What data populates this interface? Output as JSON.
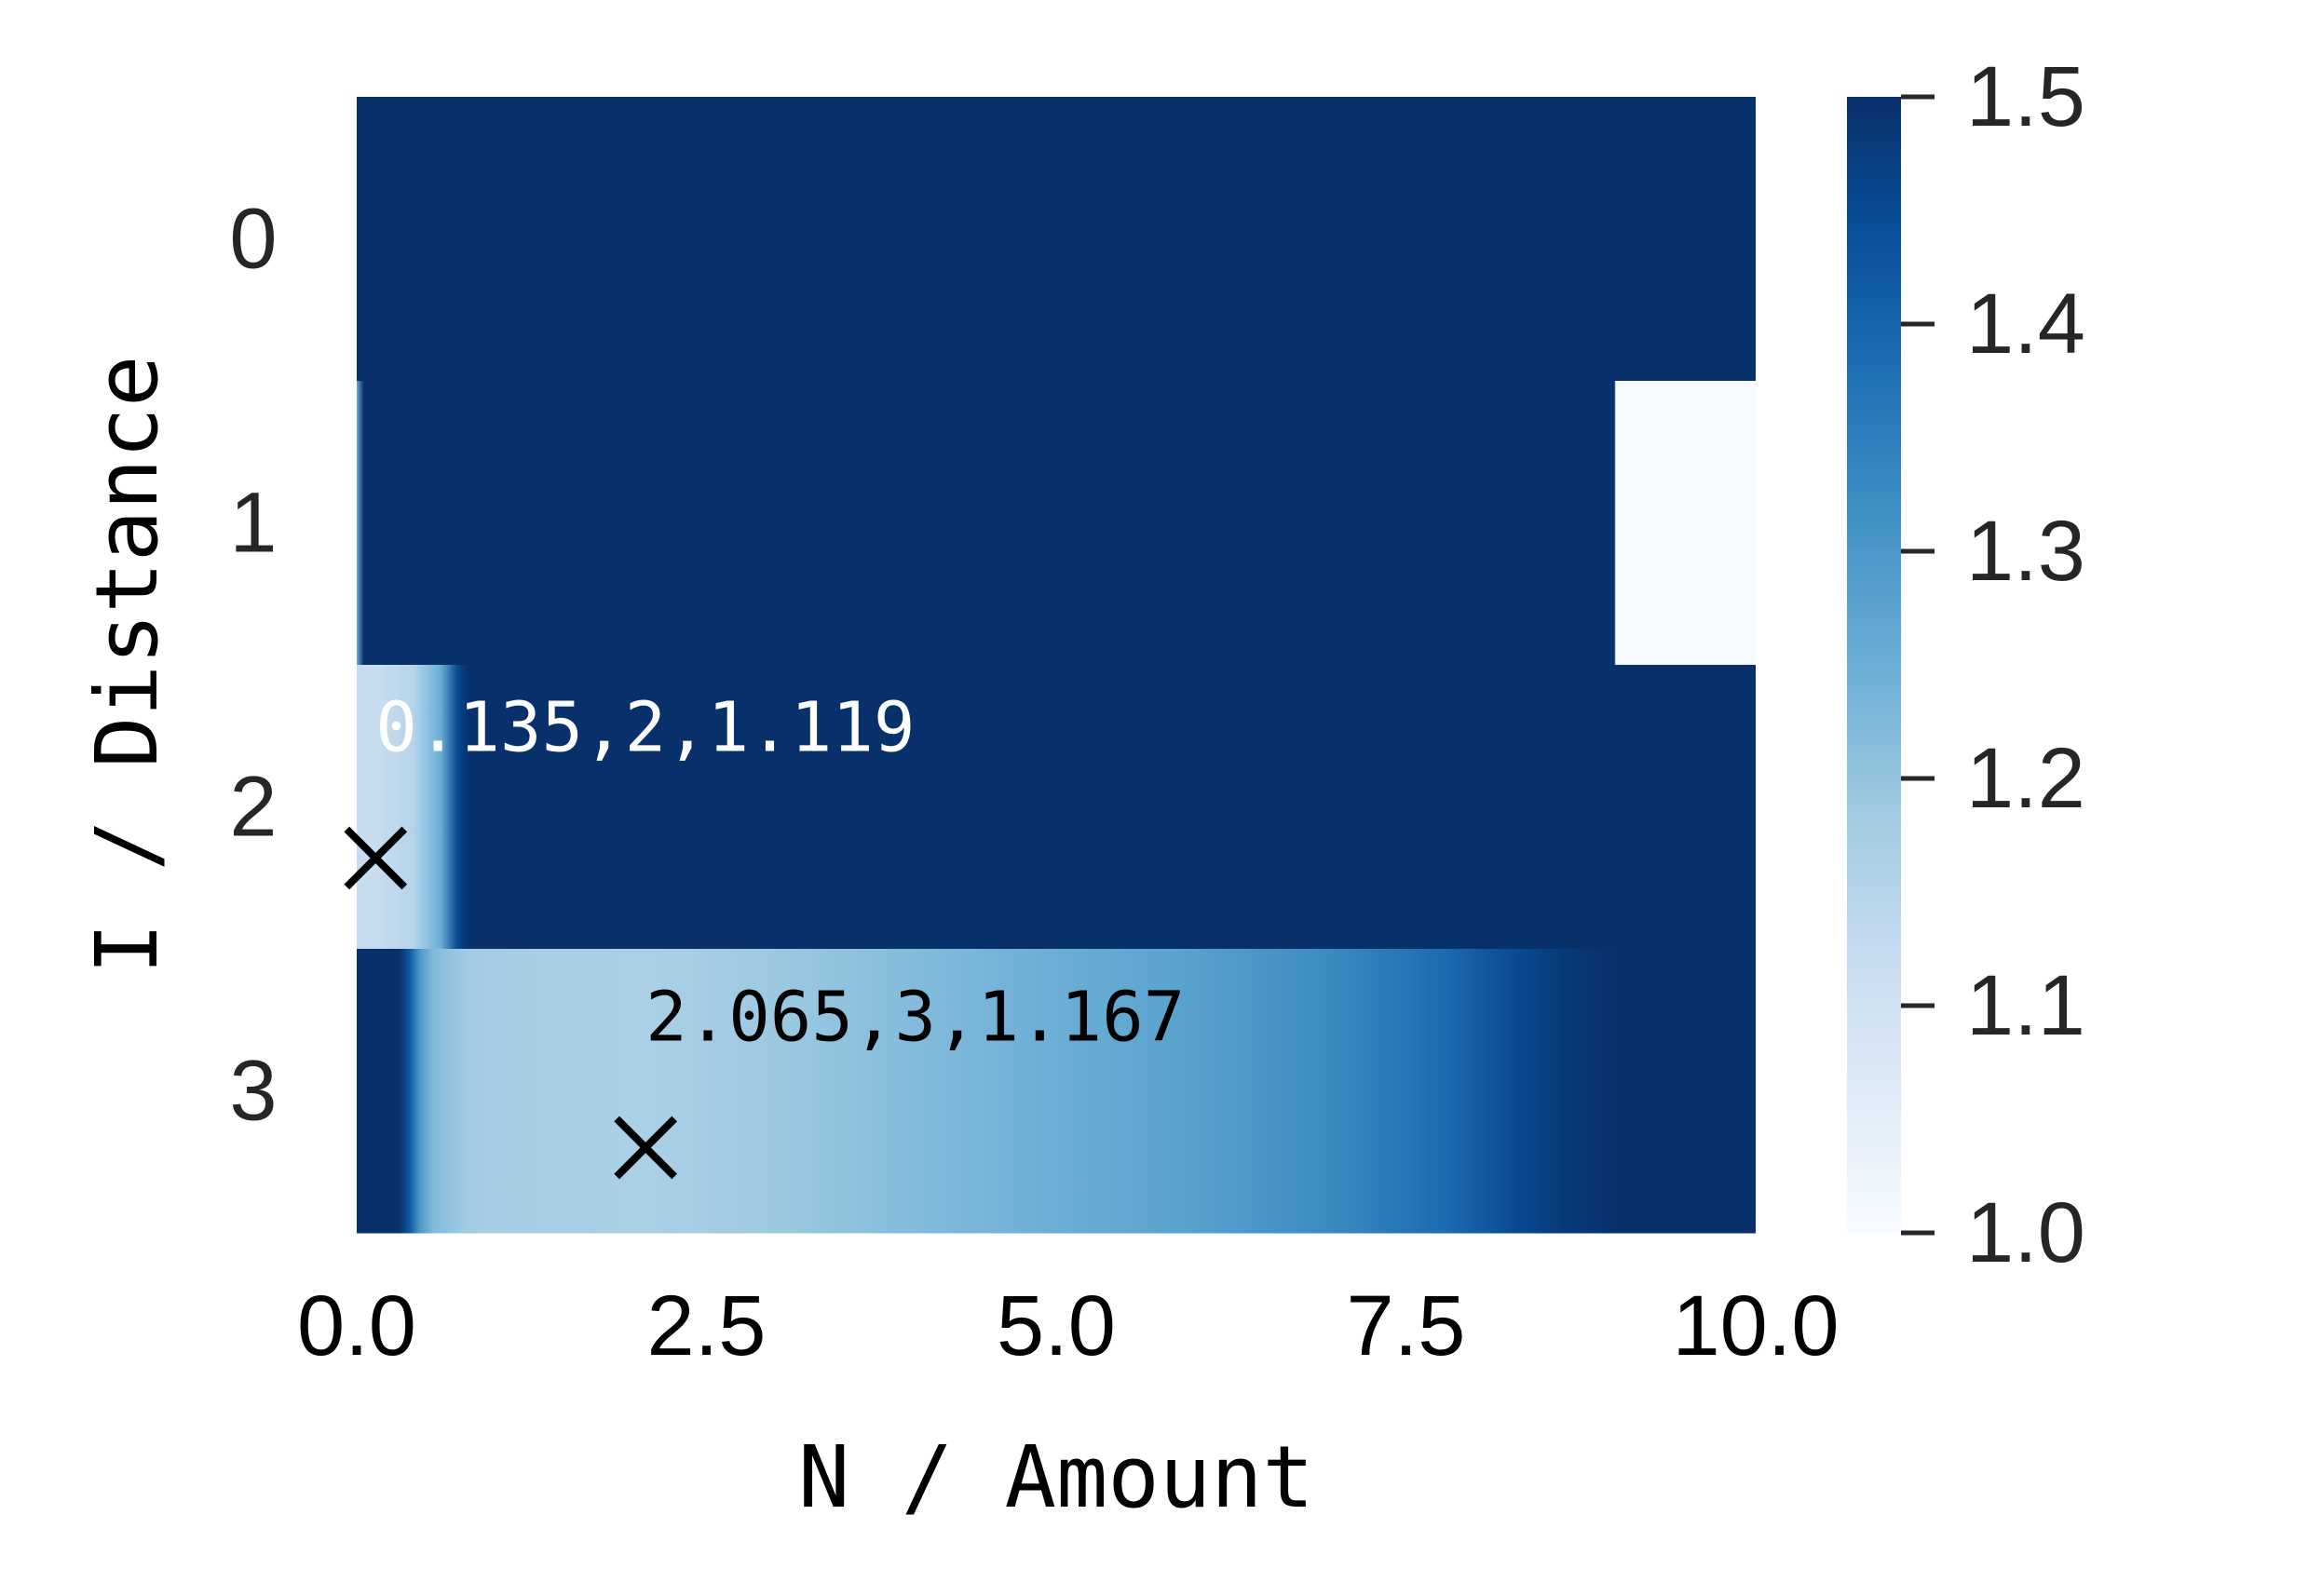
{
  "chart_data": {
    "type": "heatmap",
    "xlabel": "N / Amount",
    "ylabel": "I / Distance",
    "xlim": [
      0,
      10
    ],
    "x_ticks": [
      "0.0",
      "2.5",
      "5.0",
      "7.5",
      "10.0"
    ],
    "x_tick_values": [
      0,
      2.5,
      5,
      7.5,
      10
    ],
    "rows": [
      "0",
      "1",
      "2",
      "3"
    ],
    "colormap": "Blues",
    "color_range": [
      1.0,
      1.5
    ],
    "colorbar_ticks": [
      "1.0",
      "1.1",
      "1.2",
      "1.3",
      "1.4",
      "1.5"
    ],
    "colorbar_tick_values": [
      1.0,
      1.1,
      1.2,
      1.3,
      1.4,
      1.5
    ],
    "row_profiles": [
      {
        "row": "0",
        "x": [
          0,
          10
        ],
        "values": [
          1.5,
          1.5
        ]
      },
      {
        "row": "1",
        "x": [
          0,
          0.05,
          0.08,
          8.99,
          9.0,
          10
        ],
        "values": [
          1.25,
          1.5,
          1.5,
          1.5,
          1.0,
          1.0
        ]
      },
      {
        "row": "2",
        "x": [
          0,
          0.135,
          0.4,
          0.6,
          0.72,
          0.8,
          10
        ],
        "values": [
          1.12,
          1.119,
          1.15,
          1.25,
          1.45,
          1.5,
          1.5
        ]
      },
      {
        "row": "3",
        "x": [
          0,
          0.3,
          0.38,
          0.45,
          0.55,
          0.8,
          2.065,
          3.0,
          4.0,
          5.0,
          6.0,
          7.0,
          7.8,
          8.3,
          8.6,
          9.0,
          10
        ],
        "values": [
          1.5,
          1.5,
          1.42,
          1.3,
          1.22,
          1.18,
          1.167,
          1.19,
          1.22,
          1.25,
          1.28,
          1.33,
          1.39,
          1.45,
          1.48,
          1.5,
          1.5
        ]
      }
    ],
    "markers": [
      {
        "x": 0.135,
        "row": 2,
        "value": 1.119,
        "label": "0.135,2,1.119",
        "label_color": "#ffffff"
      },
      {
        "x": 2.065,
        "row": 3,
        "value": 1.167,
        "label": "2.065,3,1.167",
        "label_color": "#000000"
      }
    ],
    "marker_symbol": "x"
  }
}
